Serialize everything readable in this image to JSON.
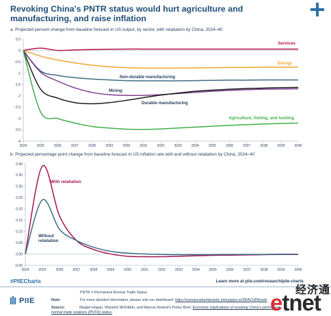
{
  "header": {
    "title": "Revoking China's PNTR status would hurt agriculture and manufacturing, and raise inflation"
  },
  "panelA": {
    "subtitle": "a. Projected percent change from baseline forecast in US output, by sector, with retaliation by China, 2024–40"
  },
  "panelB": {
    "subtitle": "b. Projected percentage point change from baseline forecast in US inflation rate with and without retaliation by China, 2024–40"
  },
  "chart_data": [
    {
      "type": "line",
      "x": [
        2024,
        2025,
        2026,
        2027,
        2028,
        2029,
        2030,
        2031,
        2032,
        2033,
        2034,
        2035,
        2036,
        2037,
        2038,
        2039,
        2040
      ],
      "ylim": [
        -4,
        0.5
      ],
      "yticks": [
        "0.5",
        "0",
        "-0.5",
        "-1",
        "-1.5",
        "-2",
        "-2.5",
        "-3",
        "-3.5",
        "-4"
      ],
      "ytick_values": [
        0.5,
        0,
        -0.5,
        -1,
        -1.5,
        -2,
        -2.5,
        -3,
        -3.5,
        -4
      ],
      "xticks": [
        "2024",
        "2025",
        "2026",
        "2027",
        "2028",
        "2029",
        "2030",
        "2031",
        "2032",
        "2033",
        "2034",
        "2035",
        "2036",
        "2037",
        "2038",
        "2039",
        "2040"
      ],
      "grid": false,
      "series": [
        {
          "name": "Services",
          "color": "#b5134b",
          "values": [
            0,
            0.1,
            0.0,
            0.02,
            0.04,
            0.05,
            0.06,
            0.06,
            0.06,
            0.06,
            0.06,
            0.06,
            0.06,
            0.06,
            0.06,
            0.06,
            0.06
          ]
        },
        {
          "name": "Energy",
          "color": "#f0a42b",
          "values": [
            0,
            -0.25,
            -0.42,
            -0.55,
            -0.65,
            -0.72,
            -0.76,
            -0.78,
            -0.78,
            -0.78,
            -0.77,
            -0.76,
            -0.75,
            -0.75,
            -0.74,
            -0.74,
            -0.74
          ]
        },
        {
          "name": "Non-durable manufacturing",
          "color": "#3d6b86",
          "values": [
            0,
            -0.9,
            -1.1,
            -1.2,
            -1.26,
            -1.3,
            -1.33,
            -1.34,
            -1.34,
            -1.34,
            -1.33,
            -1.32,
            -1.31,
            -1.31,
            -1.3,
            -1.3,
            -1.3
          ]
        },
        {
          "name": "Mining",
          "color": "#7a3d8f",
          "values": [
            0,
            -0.95,
            -1.35,
            -1.65,
            -1.85,
            -1.95,
            -1.98,
            -1.98,
            -1.95,
            -1.9,
            -1.85,
            -1.8,
            -1.76,
            -1.73,
            -1.71,
            -1.7,
            -1.69
          ]
        },
        {
          "name": "Durable manufacturing",
          "color": "#1a1a1a",
          "values": [
            0,
            -1.7,
            -2.1,
            -2.3,
            -2.35,
            -2.3,
            -2.2,
            -2.08,
            -1.97,
            -1.88,
            -1.8,
            -1.75,
            -1.71,
            -1.68,
            -1.66,
            -1.64,
            -1.63
          ]
        },
        {
          "name": "Agriculture, fishing, and hunting",
          "color": "#3fae49",
          "values": [
            0,
            -2.7,
            -3.0,
            -3.2,
            -3.35,
            -3.42,
            -3.47,
            -3.48,
            -3.46,
            -3.42,
            -3.38,
            -3.34,
            -3.3,
            -3.27,
            -3.24,
            -3.22,
            -3.2
          ]
        }
      ]
    },
    {
      "type": "line",
      "x": [
        2024,
        2025,
        2026,
        2027,
        2028,
        2029,
        2030,
        2031,
        2032,
        2033,
        2034,
        2035,
        2036,
        2037,
        2038,
        2039,
        2040
      ],
      "ylim": [
        -0.05,
        0.4
      ],
      "yticks": [
        "0.40",
        "0.35",
        "0.30",
        "0.25",
        "0.20",
        "0.15",
        "0.10",
        "0.05",
        "0.00",
        "-0.05"
      ],
      "ytick_values": [
        0.4,
        0.35,
        0.3,
        0.25,
        0.2,
        0.15,
        0.1,
        0.05,
        0,
        -0.05
      ],
      "xticks": [
        "2024",
        "2025",
        "2026",
        "2027",
        "2028",
        "2029",
        "2030",
        "2031",
        "2032",
        "2033",
        "2034",
        "2035",
        "2036",
        "2037",
        "2038",
        "2039",
        "2040"
      ],
      "grid": false,
      "series": [
        {
          "name": "With retaliation",
          "color": "#a0154e",
          "values": [
            0,
            0.39,
            0.17,
            0.06,
            0.02,
            0.0,
            -0.01,
            -0.012,
            -0.012,
            -0.01,
            -0.008,
            -0.006,
            -0.005,
            -0.004,
            -0.003,
            -0.002,
            -0.002
          ]
        },
        {
          "name": "Without retaliation",
          "color": "#3d6b86",
          "values": [
            0,
            0.24,
            0.11,
            0.06,
            0.03,
            0.012,
            0.004,
            0.0,
            -0.002,
            -0.003,
            -0.003,
            -0.003,
            -0.002,
            -0.002,
            -0.002,
            -0.001,
            -0.001
          ]
        }
      ]
    }
  ],
  "footer": {
    "hashtag": "#PIIECharts",
    "learn_more": "Learn more at piie.com/research/piie-charts",
    "logo": "PIIE",
    "pntr_note": "PNTR = Permanent Normal Trade Status",
    "notes_label": "Note:",
    "notes_text": "For more detailed information, please visit our dashboard:",
    "notes_link": "https://usmacrodashboards.shinyapps.io/SRACHINtrade",
    "source_label": "Source:",
    "source_text": "Megan Hogan, Warwick McKibbin, and Marcus Noland's Policy Brief,",
    "source_title": "Economic implications of revoking China's permanent",
    "source_title2": "normal trade relations (PNTR) status."
  },
  "watermark": {
    "cn": "经济通",
    "en_e": "e",
    "en_rest": "tnet"
  }
}
